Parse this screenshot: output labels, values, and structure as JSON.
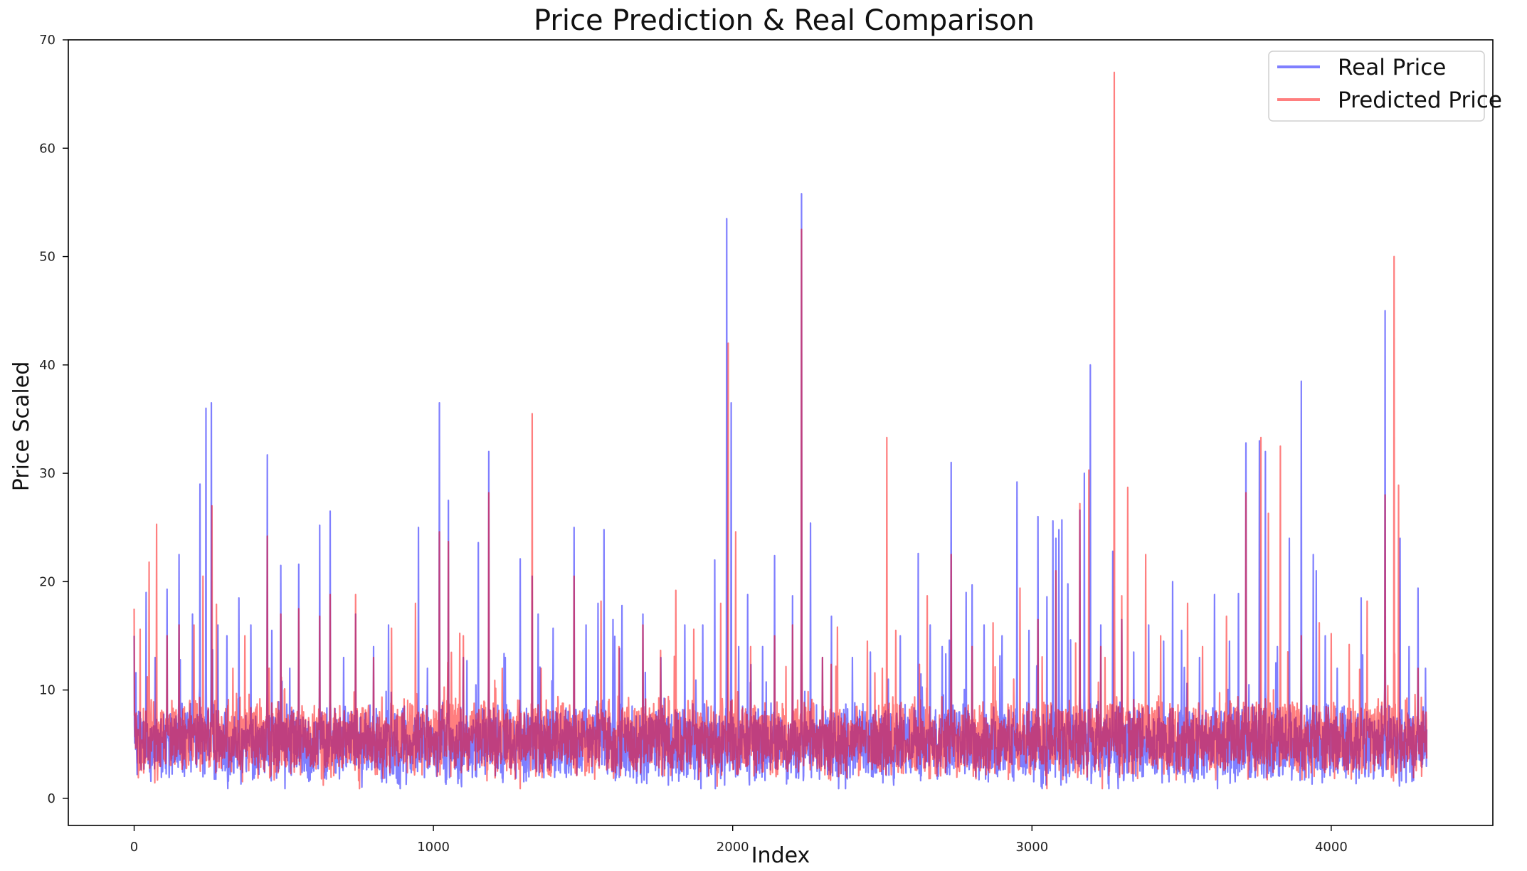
{
  "chart_data": {
    "type": "line",
    "title": "Price Prediction & Real Comparison",
    "xlabel": "Index",
    "ylabel": "Price Scaled",
    "xlim": [
      -220,
      4540
    ],
    "ylim": [
      -2.5,
      70
    ],
    "xticks": [
      0,
      1000,
      2000,
      3000,
      4000
    ],
    "yticks": [
      0,
      10,
      20,
      30,
      40,
      50,
      60,
      70
    ],
    "xtick_labels": [
      "0",
      "1000",
      "2000",
      "3000",
      "4000"
    ],
    "ytick_labels": [
      "0",
      "10",
      "20",
      "30",
      "40",
      "50",
      "60",
      "70"
    ],
    "grid": false,
    "legend": {
      "position": "top-right",
      "entries": [
        "Real Price",
        "Predicted Price"
      ]
    },
    "n_points": 4320,
    "x_range": [
      0,
      4319
    ],
    "series": [
      {
        "name": "Real Price",
        "color": "#0000ff",
        "opacity": 0.5,
        "baseline": 5.0,
        "peaks": [
          [
            0,
            15.0
          ],
          [
            40,
            19.0
          ],
          [
            70,
            13.0
          ],
          [
            110,
            19.3
          ],
          [
            150,
            22.5
          ],
          [
            195,
            17.0
          ],
          [
            220,
            29.0
          ],
          [
            240,
            36.0
          ],
          [
            258,
            36.5
          ],
          [
            280,
            16.0
          ],
          [
            310,
            15.0
          ],
          [
            350,
            18.5
          ],
          [
            390,
            16.0
          ],
          [
            445,
            31.7
          ],
          [
            460,
            15.5
          ],
          [
            490,
            21.5
          ],
          [
            520,
            12.0
          ],
          [
            550,
            21.6
          ],
          [
            620,
            25.2
          ],
          [
            655,
            26.5
          ],
          [
            700,
            13.0
          ],
          [
            740,
            17.0
          ],
          [
            800,
            14.0
          ],
          [
            850,
            16.0
          ],
          [
            950,
            25.0
          ],
          [
            980,
            12.0
          ],
          [
            1020,
            36.5
          ],
          [
            1050,
            27.5
          ],
          [
            1100,
            13.0
          ],
          [
            1150,
            23.6
          ],
          [
            1185,
            32.0
          ],
          [
            1240,
            13.0
          ],
          [
            1290,
            22.1
          ],
          [
            1330,
            20.5
          ],
          [
            1350,
            17.0
          ],
          [
            1400,
            15.7
          ],
          [
            1470,
            25.0
          ],
          [
            1510,
            16.0
          ],
          [
            1550,
            18.0
          ],
          [
            1570,
            24.8
          ],
          [
            1600,
            16.5
          ],
          [
            1630,
            17.8
          ],
          [
            1700,
            17.0
          ],
          [
            1760,
            13.0
          ],
          [
            1840,
            16.0
          ],
          [
            1900,
            16.0
          ],
          [
            1940,
            22.0
          ],
          [
            1980,
            53.5
          ],
          [
            1995,
            36.5
          ],
          [
            2020,
            14.0
          ],
          [
            2050,
            18.8
          ],
          [
            2100,
            14.0
          ],
          [
            2140,
            22.4
          ],
          [
            2200,
            18.7
          ],
          [
            2230,
            55.8
          ],
          [
            2260,
            25.4
          ],
          [
            2300,
            13.0
          ],
          [
            2330,
            16.8
          ],
          [
            2400,
            13.0
          ],
          [
            2460,
            13.5
          ],
          [
            2520,
            11.0
          ],
          [
            2560,
            15.0
          ],
          [
            2620,
            22.6
          ],
          [
            2660,
            16.0
          ],
          [
            2700,
            14.0
          ],
          [
            2730,
            31.0
          ],
          [
            2780,
            19.0
          ],
          [
            2800,
            19.7
          ],
          [
            2840,
            16.0
          ],
          [
            2900,
            15.0
          ],
          [
            2950,
            29.2
          ],
          [
            2990,
            15.5
          ],
          [
            3020,
            26.0
          ],
          [
            3050,
            18.6
          ],
          [
            3070,
            25.6
          ],
          [
            3080,
            24.0
          ],
          [
            3090,
            24.8
          ],
          [
            3100,
            25.7
          ],
          [
            3120,
            19.8
          ],
          [
            3160,
            26.6
          ],
          [
            3175,
            30.0
          ],
          [
            3195,
            40.0
          ],
          [
            3230,
            16.0
          ],
          [
            3270,
            22.8
          ],
          [
            3300,
            16.5
          ],
          [
            3340,
            13.5
          ],
          [
            3390,
            16.0
          ],
          [
            3440,
            14.5
          ],
          [
            3470,
            20.0
          ],
          [
            3500,
            15.5
          ],
          [
            3560,
            13.0
          ],
          [
            3610,
            18.8
          ],
          [
            3660,
            14.5
          ],
          [
            3690,
            18.9
          ],
          [
            3715,
            32.8
          ],
          [
            3760,
            33.0
          ],
          [
            3780,
            32.0
          ],
          [
            3820,
            14.0
          ],
          [
            3860,
            24.0
          ],
          [
            3900,
            38.5
          ],
          [
            3940,
            22.5
          ],
          [
            3950,
            21.0
          ],
          [
            3980,
            15.0
          ],
          [
            4020,
            12.0
          ],
          [
            4100,
            18.5
          ],
          [
            4180,
            45.0
          ],
          [
            4230,
            24.0
          ],
          [
            4260,
            14.0
          ],
          [
            4290,
            19.4
          ],
          [
            4315,
            12.0
          ]
        ]
      },
      {
        "name": "Predicted Price",
        "color": "#ff0000",
        "opacity": 0.5,
        "baseline": 5.5,
        "peaks": [
          [
            0,
            17.5
          ],
          [
            20,
            15.6
          ],
          [
            50,
            21.8
          ],
          [
            75,
            25.3
          ],
          [
            110,
            15.0
          ],
          [
            150,
            16.0
          ],
          [
            200,
            16.0
          ],
          [
            230,
            20.5
          ],
          [
            260,
            27.0
          ],
          [
            275,
            17.9
          ],
          [
            330,
            12.0
          ],
          [
            370,
            15.0
          ],
          [
            445,
            24.2
          ],
          [
            490,
            17.0
          ],
          [
            550,
            17.5
          ],
          [
            620,
            16.8
          ],
          [
            655,
            18.8
          ],
          [
            740,
            18.8
          ],
          [
            800,
            13.0
          ],
          [
            860,
            15.7
          ],
          [
            940,
            18.0
          ],
          [
            1020,
            24.6
          ],
          [
            1050,
            23.7
          ],
          [
            1100,
            15.0
          ],
          [
            1185,
            28.2
          ],
          [
            1230,
            12.0
          ],
          [
            1330,
            35.5
          ],
          [
            1360,
            12.0
          ],
          [
            1470,
            20.5
          ],
          [
            1560,
            18.2
          ],
          [
            1620,
            14.0
          ],
          [
            1700,
            16.0
          ],
          [
            1810,
            19.2
          ],
          [
            1870,
            15.6
          ],
          [
            1960,
            18.0
          ],
          [
            1985,
            42.0
          ],
          [
            2010,
            24.6
          ],
          [
            2060,
            14.0
          ],
          [
            2140,
            15.0
          ],
          [
            2200,
            16.0
          ],
          [
            2230,
            52.5
          ],
          [
            2300,
            13.0
          ],
          [
            2350,
            15.8
          ],
          [
            2450,
            14.5
          ],
          [
            2500,
            12.0
          ],
          [
            2515,
            33.3
          ],
          [
            2545,
            15.5
          ],
          [
            2650,
            18.7
          ],
          [
            2730,
            22.5
          ],
          [
            2800,
            14.0
          ],
          [
            2870,
            16.2
          ],
          [
            2960,
            19.4
          ],
          [
            3020,
            16.5
          ],
          [
            3080,
            21.0
          ],
          [
            3160,
            27.2
          ],
          [
            3190,
            30.3
          ],
          [
            3230,
            14.0
          ],
          [
            3275,
            67.0
          ],
          [
            3300,
            18.7
          ],
          [
            3320,
            28.7
          ],
          [
            3380,
            22.5
          ],
          [
            3430,
            15.0
          ],
          [
            3520,
            18.0
          ],
          [
            3570,
            14.0
          ],
          [
            3650,
            16.8
          ],
          [
            3715,
            28.2
          ],
          [
            3765,
            33.3
          ],
          [
            3790,
            26.3
          ],
          [
            3830,
            32.5
          ],
          [
            3900,
            15.0
          ],
          [
            3960,
            16.2
          ],
          [
            4000,
            15.2
          ],
          [
            4060,
            14.2
          ],
          [
            4120,
            18.2
          ],
          [
            4180,
            28.0
          ],
          [
            4210,
            50.0
          ],
          [
            4225,
            28.9
          ],
          [
            4290,
            12.0
          ]
        ]
      }
    ]
  }
}
